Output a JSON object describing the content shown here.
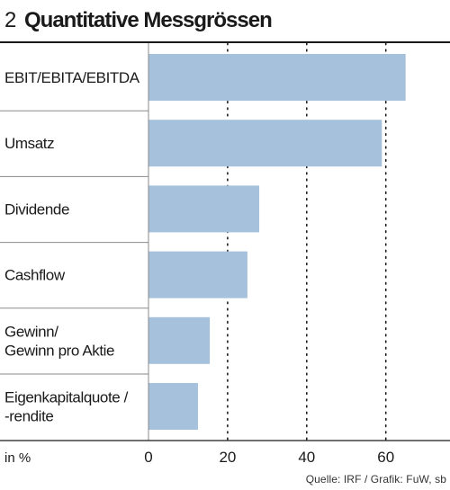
{
  "header": {
    "number": "2",
    "title": "Quantitative Messgrössen"
  },
  "chart_data": {
    "type": "bar",
    "orientation": "horizontal",
    "categories": [
      [
        "EBIT/EBITA/EBITDA"
      ],
      [
        "Umsatz"
      ],
      [
        "Dividende"
      ],
      [
        "Cashflow"
      ],
      [
        "Gewinn/",
        "Gewinn pro Aktie"
      ],
      [
        "Eigenkapitalquote /",
        "-rendite"
      ]
    ],
    "values": [
      65,
      59,
      28,
      25,
      15.5,
      12.5
    ],
    "xlim": [
      0,
      75
    ],
    "xticks": [
      0,
      20,
      40,
      60
    ],
    "xtick_labels": [
      "0",
      "20",
      "40",
      "60"
    ],
    "xlabel": "in %",
    "grid": "vertical dotted",
    "bar_color": "#a5c1dc"
  },
  "footer": {
    "source": "Quelle: IRF / Grafik: FuW, sb"
  }
}
